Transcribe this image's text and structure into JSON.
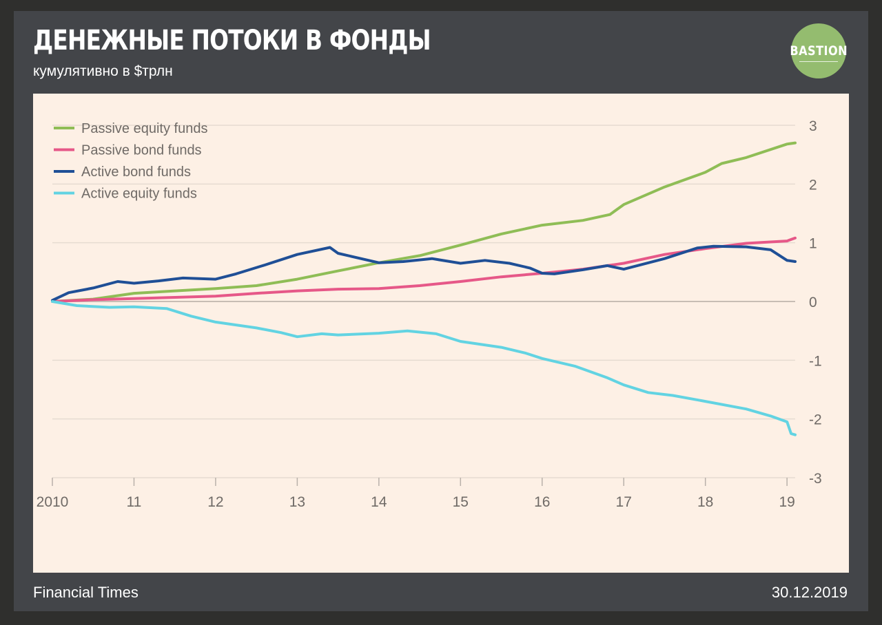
{
  "header": {
    "title": "ДЕНЕЖНЫЕ ПОТОКИ В ФОНДЫ",
    "subtitle": "кумулятивно в $трлн",
    "logo": "BASTION"
  },
  "footer": {
    "source": "Financial Times",
    "date": "30.12.2019"
  },
  "colors": {
    "panel_bg": "#fdf0e5",
    "passive_equity": "#8fbd56",
    "passive_bond": "#e65888",
    "active_bond": "#1f4f96",
    "active_equity": "#62d3e2",
    "logo_bg": "#94bc6f"
  },
  "chart_data": {
    "type": "line",
    "title": "ДЕНЕЖНЫЕ ПОТОКИ В ФОНДЫ",
    "subtitle": "кумулятивно в $трлн",
    "xlim": [
      2010,
      2019.1
    ],
    "ylim": [
      -3,
      3
    ],
    "x_tick_values": [
      2010,
      2011,
      2012,
      2013,
      2014,
      2015,
      2016,
      2017,
      2018,
      2019
    ],
    "x_tick_labels": [
      "2010",
      "11",
      "12",
      "13",
      "14",
      "15",
      "16",
      "17",
      "18",
      "19"
    ],
    "y_ticks": [
      3,
      2,
      1,
      0,
      -1,
      -2,
      -3
    ],
    "grid": true,
    "legend_position": "top-left",
    "series": [
      {
        "name": "Passive equity funds",
        "color": "#8fbd56",
        "points": [
          [
            2010,
            0
          ],
          [
            2010.5,
            0.04
          ],
          [
            2011,
            0.14
          ],
          [
            2011.5,
            0.18
          ],
          [
            2012,
            0.22
          ],
          [
            2012.5,
            0.27
          ],
          [
            2013,
            0.38
          ],
          [
            2013.5,
            0.52
          ],
          [
            2014,
            0.66
          ],
          [
            2014.5,
            0.78
          ],
          [
            2015,
            0.96
          ],
          [
            2015.5,
            1.15
          ],
          [
            2016,
            1.3
          ],
          [
            2016.5,
            1.38
          ],
          [
            2016.83,
            1.48
          ],
          [
            2017,
            1.65
          ],
          [
            2017.5,
            1.95
          ],
          [
            2018,
            2.2
          ],
          [
            2018.2,
            2.35
          ],
          [
            2018.5,
            2.45
          ],
          [
            2019,
            2.68
          ],
          [
            2019.1,
            2.7
          ]
        ]
      },
      {
        "name": "Passive bond funds",
        "color": "#e65888",
        "points": [
          [
            2010,
            0
          ],
          [
            2010.5,
            0.03
          ],
          [
            2011,
            0.05
          ],
          [
            2011.5,
            0.07
          ],
          [
            2012,
            0.09
          ],
          [
            2012.5,
            0.14
          ],
          [
            2013,
            0.18
          ],
          [
            2013.5,
            0.21
          ],
          [
            2014,
            0.22
          ],
          [
            2014.5,
            0.27
          ],
          [
            2015,
            0.34
          ],
          [
            2015.5,
            0.42
          ],
          [
            2016,
            0.48
          ],
          [
            2016.5,
            0.55
          ],
          [
            2017,
            0.65
          ],
          [
            2017.5,
            0.8
          ],
          [
            2018,
            0.9
          ],
          [
            2018.5,
            0.99
          ],
          [
            2019,
            1.03
          ],
          [
            2019.1,
            1.08
          ]
        ]
      },
      {
        "name": "Active bond funds",
        "color": "#1f4f96",
        "points": [
          [
            2010,
            0.02
          ],
          [
            2010.2,
            0.15
          ],
          [
            2010.5,
            0.23
          ],
          [
            2010.8,
            0.34
          ],
          [
            2011,
            0.31
          ],
          [
            2011.3,
            0.35
          ],
          [
            2011.6,
            0.4
          ],
          [
            2012,
            0.38
          ],
          [
            2012.25,
            0.47
          ],
          [
            2012.6,
            0.62
          ],
          [
            2013,
            0.8
          ],
          [
            2013.4,
            0.92
          ],
          [
            2013.5,
            0.82
          ],
          [
            2014,
            0.66
          ],
          [
            2014.3,
            0.68
          ],
          [
            2014.65,
            0.73
          ],
          [
            2015,
            0.65
          ],
          [
            2015.3,
            0.7
          ],
          [
            2015.6,
            0.65
          ],
          [
            2015.85,
            0.57
          ],
          [
            2016,
            0.48
          ],
          [
            2016.15,
            0.47
          ],
          [
            2016.5,
            0.54
          ],
          [
            2016.8,
            0.61
          ],
          [
            2017,
            0.55
          ],
          [
            2017.5,
            0.73
          ],
          [
            2017.9,
            0.91
          ],
          [
            2018.1,
            0.94
          ],
          [
            2018.5,
            0.93
          ],
          [
            2018.8,
            0.88
          ],
          [
            2019,
            0.7
          ],
          [
            2019.1,
            0.68
          ]
        ]
      },
      {
        "name": "Active equity funds",
        "color": "#62d3e2",
        "points": [
          [
            2010,
            0
          ],
          [
            2010.3,
            -0.07
          ],
          [
            2010.7,
            -0.1
          ],
          [
            2011,
            -0.09
          ],
          [
            2011.4,
            -0.12
          ],
          [
            2011.7,
            -0.25
          ],
          [
            2012,
            -0.35
          ],
          [
            2012.5,
            -0.45
          ],
          [
            2012.8,
            -0.53
          ],
          [
            2013,
            -0.6
          ],
          [
            2013.3,
            -0.55
          ],
          [
            2013.5,
            -0.57
          ],
          [
            2014,
            -0.54
          ],
          [
            2014.35,
            -0.5
          ],
          [
            2014.7,
            -0.55
          ],
          [
            2015,
            -0.68
          ],
          [
            2015.5,
            -0.78
          ],
          [
            2015.8,
            -0.88
          ],
          [
            2016,
            -0.97
          ],
          [
            2016.4,
            -1.1
          ],
          [
            2016.8,
            -1.3
          ],
          [
            2017,
            -1.42
          ],
          [
            2017.3,
            -1.55
          ],
          [
            2017.6,
            -1.6
          ],
          [
            2018,
            -1.7
          ],
          [
            2018.5,
            -1.83
          ],
          [
            2018.8,
            -1.95
          ],
          [
            2019,
            -2.05
          ],
          [
            2019.05,
            -2.25
          ],
          [
            2019.1,
            -2.27
          ]
        ]
      }
    ]
  }
}
